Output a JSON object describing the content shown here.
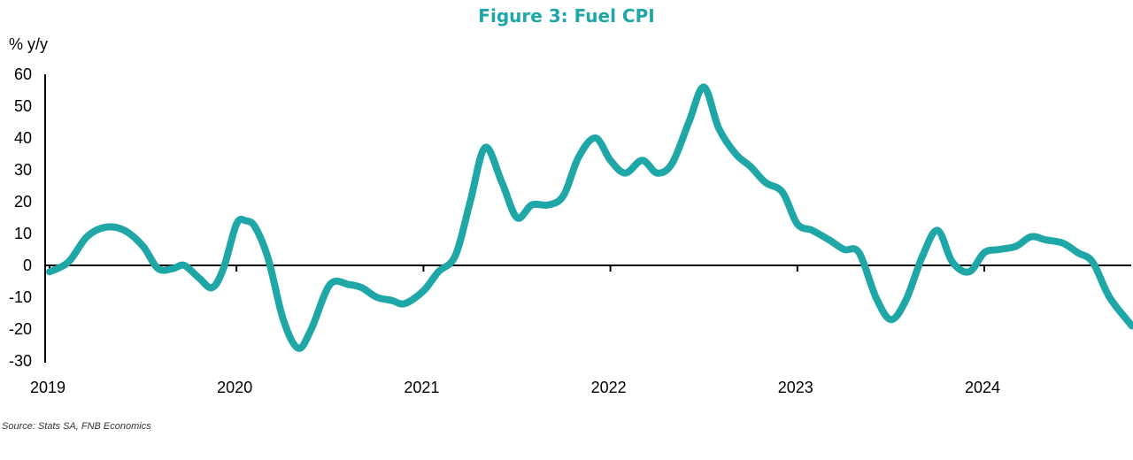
{
  "title": "Figure 3: Fuel CPI",
  "source": "Source: Stats SA, FNB Economics",
  "chart_data": {
    "type": "line",
    "ylabel": "% y/y",
    "ylim": [
      -30,
      60
    ],
    "y_ticks": [
      "60",
      "50",
      "40",
      "30",
      "20",
      "10",
      "0",
      "-10",
      "-20",
      "-30"
    ],
    "x_ticks": [
      "2019",
      "2020",
      "2021",
      "2022",
      "2023",
      "2024"
    ],
    "xlim": [
      2019.0,
      2024.9
    ],
    "grid": false,
    "line_color": "#1fa6a6",
    "series": [
      {
        "points": [
          [
            2019.0,
            -2
          ],
          [
            2019.1,
            1
          ],
          [
            2019.2,
            9
          ],
          [
            2019.3,
            12
          ],
          [
            2019.4,
            11
          ],
          [
            2019.5,
            6
          ],
          [
            2019.58,
            -1
          ],
          [
            2019.66,
            -1
          ],
          [
            2019.72,
            0
          ],
          [
            2019.8,
            -4
          ],
          [
            2019.87,
            -7
          ],
          [
            2019.93,
            -1
          ],
          [
            2020.0,
            13
          ],
          [
            2020.05,
            14
          ],
          [
            2020.1,
            12
          ],
          [
            2020.17,
            2
          ],
          [
            2020.25,
            -17
          ],
          [
            2020.33,
            -26
          ],
          [
            2020.4,
            -20
          ],
          [
            2020.5,
            -6
          ],
          [
            2020.6,
            -6
          ],
          [
            2020.67,
            -7
          ],
          [
            2020.75,
            -10
          ],
          [
            2020.83,
            -11
          ],
          [
            2020.9,
            -12
          ],
          [
            2021.0,
            -8
          ],
          [
            2021.08,
            -2
          ],
          [
            2021.17,
            3
          ],
          [
            2021.25,
            20
          ],
          [
            2021.33,
            37
          ],
          [
            2021.42,
            26
          ],
          [
            2021.5,
            15
          ],
          [
            2021.58,
            19
          ],
          [
            2021.67,
            19
          ],
          [
            2021.75,
            22
          ],
          [
            2021.83,
            34
          ],
          [
            2021.92,
            40
          ],
          [
            2022.0,
            33
          ],
          [
            2022.08,
            29
          ],
          [
            2022.17,
            33
          ],
          [
            2022.25,
            29
          ],
          [
            2022.33,
            32
          ],
          [
            2022.42,
            45
          ],
          [
            2022.5,
            56
          ],
          [
            2022.58,
            43
          ],
          [
            2022.67,
            35
          ],
          [
            2022.75,
            31
          ],
          [
            2022.83,
            26
          ],
          [
            2022.92,
            23
          ],
          [
            2023.0,
            13
          ],
          [
            2023.08,
            11
          ],
          [
            2023.17,
            8
          ],
          [
            2023.25,
            5
          ],
          [
            2023.33,
            4
          ],
          [
            2023.42,
            -10
          ],
          [
            2023.5,
            -17
          ],
          [
            2023.58,
            -11
          ],
          [
            2023.67,
            3
          ],
          [
            2023.75,
            11
          ],
          [
            2023.83,
            1
          ],
          [
            2023.92,
            -2
          ],
          [
            2024.0,
            4
          ],
          [
            2024.08,
            5
          ],
          [
            2024.17,
            6
          ],
          [
            2024.25,
            9
          ],
          [
            2024.33,
            8
          ],
          [
            2024.42,
            7
          ],
          [
            2024.5,
            4
          ],
          [
            2024.58,
            1
          ],
          [
            2024.67,
            -10
          ],
          [
            2024.79,
            -19
          ]
        ]
      }
    ]
  }
}
